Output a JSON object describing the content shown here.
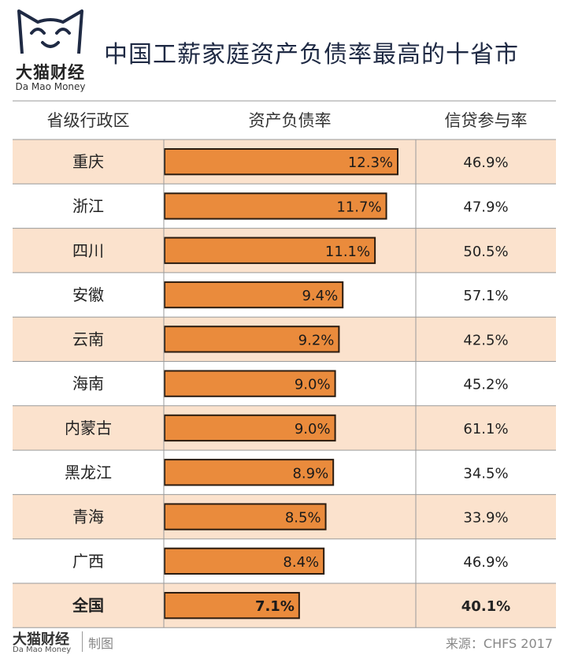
{
  "header": {
    "logo_name": "大猫财经",
    "logo_en": "Da Mao Money",
    "title": "中国工薪家庭资产负债率最高的十省市"
  },
  "colors": {
    "bar_fill": "#ea8b3c",
    "bar_stroke": "#2b1c10",
    "row_shaded": "#fbe2cd",
    "row_plain": "#ffffff",
    "grid": "#9a9a9a",
    "logo": "#1f2a44"
  },
  "chart_data": {
    "type": "table",
    "columns": [
      "省级行政区",
      "资产负债率",
      "信贷参与率"
    ],
    "categories": [
      "重庆",
      "浙江",
      "四川",
      "安徽",
      "云南",
      "海南",
      "内蒙古",
      "黑龙江",
      "青海",
      "广西",
      "全国"
    ],
    "series": [
      {
        "name": "资产负债率",
        "values": [
          12.3,
          11.7,
          11.1,
          9.4,
          9.2,
          9.0,
          9.0,
          8.9,
          8.5,
          8.4,
          7.1
        ],
        "unit": "%",
        "display": "bar"
      },
      {
        "name": "信贷参与率",
        "values": [
          46.9,
          47.9,
          50.5,
          57.1,
          42.5,
          45.2,
          61.1,
          34.5,
          33.9,
          46.9,
          40.1
        ],
        "unit": "%",
        "display": "text"
      }
    ],
    "value_labels": {
      "资产负债率": [
        "12.3%",
        "11.7%",
        "11.1%",
        "9.4%",
        "9.2%",
        "9.0%",
        "9.0%",
        "8.9%",
        "8.5%",
        "8.4%",
        "7.1%"
      ],
      "信贷参与率": [
        "46.9%",
        "47.9%",
        "50.5%",
        "57.1%",
        "42.5%",
        "45.2%",
        "61.1%",
        "34.5%",
        "33.9%",
        "46.9%",
        "40.1%"
      ]
    },
    "bold_last_row": true,
    "xlim": [
      0,
      12.3
    ]
  },
  "footer": {
    "logo_name": "大猫财经",
    "logo_en": "Da Mao Money",
    "made_by": "制图",
    "source": "来源：CHFS 2017"
  }
}
